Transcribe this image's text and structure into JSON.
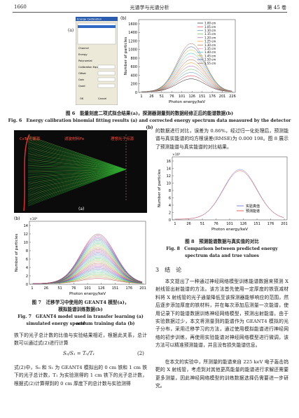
{
  "header": {
    "page": "1660",
    "journal": "光谱学与光谱分析",
    "volume": "第 45 卷"
  },
  "figure6": {
    "panel_a": "(a)",
    "panel_b": "(b)",
    "dialog": {
      "title": "Energy Calibration",
      "labels": [
        "Channel",
        "Energy",
        "Polynomial",
        "Calibration Equation",
        "Offset",
        "Gain",
        "Quad",
        "OK",
        "Cancel"
      ]
    },
    "chart": {
      "y_label": "Number of particles",
      "x_label": "Photon energy/keV",
      "xticks": [
        1,
        26,
        51,
        76,
        101,
        126,
        151,
        176,
        201,
        226
      ],
      "yticks": [
        0,
        200,
        400,
        600,
        800,
        1000,
        1200,
        1400,
        1600
      ],
      "legend": [
        "1.00 cm",
        "1.05 cm",
        "1.10 cm",
        "1.15 cm",
        "1.20 cm",
        "1.25 cm",
        "1.30 cm",
        "1.35 cm",
        "1.40 cm",
        "1.45 cm",
        "1.50 cm",
        "1.55 cm"
      ]
    },
    "caption_cn": "图 6　能量刻度二项式拟合结果(a)，探测器测量到的数据经修正后的能谱数据(b)",
    "caption_en": "Fig. 6　Energy calibration binomial fitting results (a) and corrected energy spectrum data measured by the detector (b)"
  },
  "figure7": {
    "panel_a": "(a)",
    "panel_b": "(b)",
    "model_labels": [
      "CsTe光谱源",
      "滤波材料Fe",
      "理想光子点源"
    ],
    "chart": {
      "multiplier": "×10⁴",
      "y_label": "Number of particles",
      "x_label": "Photon energy/keV",
      "xticks": [
        1,
        26,
        51,
        76,
        101,
        126,
        151,
        176,
        201
      ],
      "yticks": [
        0,
        2,
        4,
        6,
        8,
        10,
        12,
        14
      ]
    },
    "caption_cn": [
      "图 7　迁移学习中使用的 GEANT4 模型(a)，",
      "模拟能谱训练数据(b)"
    ],
    "caption_en": [
      "Fig. 7　GEANT4 model used in transfer learning (a) and",
      "simulated energy spectrum training data (b)"
    ]
  },
  "figure8": {
    "chart": {
      "multiplier": "×10³",
      "y_label": "Number of particles",
      "x_label": "Photon energy/keV",
      "xticks": [
        1,
        26,
        51,
        76,
        101,
        126,
        151,
        176,
        201
      ],
      "yticks": [
        0,
        2,
        4,
        6,
        8,
        10,
        12,
        14,
        16
      ],
      "legend": [
        "实验真值",
        "预测能谱"
      ]
    },
    "caption_cn": "图 8　预测能谱数据与真实值的对比",
    "caption_en": [
      "Fig. 8　Comparison between predicted energy",
      "spectrum data and true values"
    ]
  },
  "left_text": {
    "para1": "铁下的光子总计数的比值与实验结果相近，根据此关系，总计数可以通过式(2)进行计算",
    "equation": "S₀/S₁ = T₀/T₁",
    "equation_number": "(2)",
    "para2": "式(2)中，S₀ 和 S₁ 为 GEANT4 模拟出的 0 cm 铁和 1 cm 铁下的光子总计数，T₁ 为实验测得的 1 cm 铁下的光子总计数，根据式(2)计算得到的 0 cm 厚度下的总计数与实验测得"
  },
  "right_text": {
    "para1": "的数据进行对比，误差为 0.86%，经过归一化处理后，预测能谱与真实能谱的均方根误差(RMSE)为 0.000 198。图 8 展示了预测能谱与真实能谱的对比结果。",
    "section": "3　结　论",
    "para2": "本文提出了一种通过神经网络模型训练能谱数据来预测 X 射线管出射能谱的方法。该方法首先使用一定厚度的铁衰减材料将 X 射线管的光子通量降低至该探测器能够响应的范围，然后逐步添加厚度的铁材料，并在每次添加后测量一次能谱，使用记录下的能谱数据训练神经网络模型，预测出射能谱。由于实验数据过少，本文将测量到的能谱作为 GEANT4 模拟的光子分布，采用迁移学习的方法，通过使用模拟能谱进行神经网络的初步训练，再使用实验能谱对神经网络模型进行微调，该方法可以精准预测能谱，并且没有损失能谱信息。",
    "para3": "在本文的实验中，所测量的能谱来自 225 keV 电子轰击钨靶的 X 射线管，考虑到对其他更高能量的能谱进行求解还需要更多测量，因此神经网络模型的训练数据选择仍需要进一步研究。"
  }
}
